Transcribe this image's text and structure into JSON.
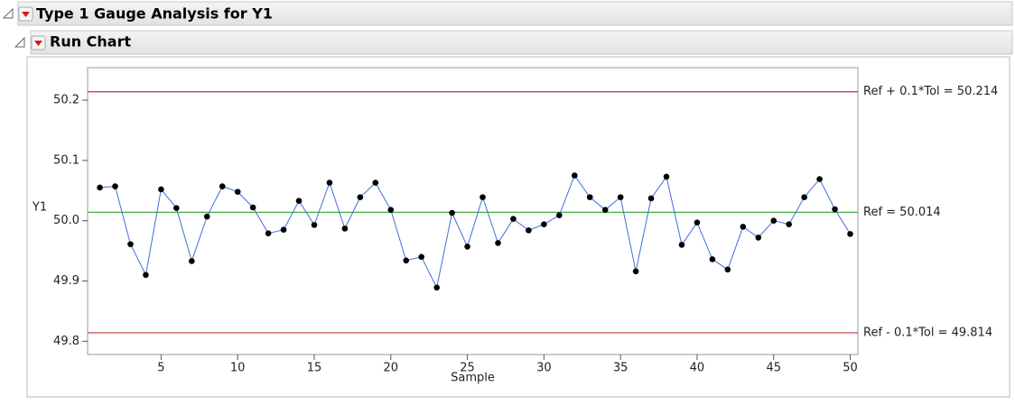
{
  "outline": {
    "title": "Type 1 Gauge Analysis for Y1",
    "section": "Run Chart"
  },
  "chart_data": {
    "type": "line",
    "xlabel": "Sample",
    "ylabel": "Y1",
    "x": [
      1,
      2,
      3,
      4,
      5,
      6,
      7,
      8,
      9,
      10,
      11,
      12,
      13,
      14,
      15,
      16,
      17,
      18,
      19,
      20,
      21,
      22,
      23,
      24,
      25,
      26,
      27,
      28,
      29,
      30,
      31,
      32,
      33,
      34,
      35,
      36,
      37,
      38,
      39,
      40,
      41,
      42,
      43,
      44,
      45,
      46,
      47,
      48,
      49,
      50
    ],
    "values": [
      50.055,
      50.057,
      49.961,
      49.91,
      50.052,
      50.021,
      49.933,
      50.007,
      50.057,
      50.048,
      50.022,
      49.979,
      49.985,
      50.033,
      49.993,
      50.063,
      49.987,
      50.039,
      50.063,
      50.018,
      49.934,
      49.94,
      49.889,
      50.013,
      49.957,
      50.039,
      49.963,
      50.003,
      49.984,
      49.994,
      50.009,
      50.075,
      50.039,
      50.018,
      50.039,
      49.916,
      50.037,
      50.073,
      49.96,
      49.997,
      49.936,
      49.919,
      49.99,
      49.972,
      50.0,
      49.994,
      50.039,
      50.069,
      50.019,
      49.978
    ],
    "color": "#3d6fdc",
    "marker_color": "#000000",
    "xlim": [
      0.2,
      50.5
    ],
    "xticks": [
      5,
      10,
      15,
      20,
      25,
      30,
      35,
      40,
      45,
      50
    ],
    "ylim": [
      49.778,
      50.254
    ],
    "yticks": [
      49.8,
      49.9,
      {
        "value": 50,
        "label": "50.0"
      },
      50.1,
      50.2
    ],
    "reference_lines": [
      {
        "value": 50.214,
        "label": "Ref + 0.1*Tol = 50.214",
        "color": "#c0303a"
      },
      {
        "value": 50.014,
        "label": "Ref = 50.014",
        "color": "#2ca02c"
      },
      {
        "value": 49.814,
        "label": "Ref - 0.1*Tol = 49.814",
        "color": "#c0303a"
      }
    ]
  }
}
